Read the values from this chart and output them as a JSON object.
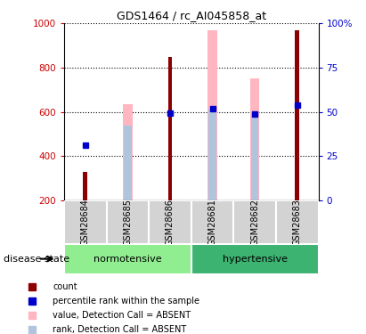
{
  "title": "GDS1464 / rc_AI045858_at",
  "samples": [
    "GSM28684",
    "GSM28685",
    "GSM28686",
    "GSM28681",
    "GSM28682",
    "GSM28683"
  ],
  "count_values": [
    330,
    null,
    850,
    null,
    null,
    970
  ],
  "percentile_values": [
    450,
    null,
    595,
    615,
    590,
    630
  ],
  "absent_value_values": [
    null,
    635,
    null,
    970,
    750,
    null
  ],
  "absent_rank_values": [
    null,
    540,
    null,
    615,
    585,
    null
  ],
  "ylim_left": [
    200,
    1000
  ],
  "ylim_right": [
    0,
    100
  ],
  "yticks_left": [
    200,
    400,
    600,
    800,
    1000
  ],
  "ytick_labels_left": [
    "200",
    "400",
    "600",
    "800",
    "1000"
  ],
  "yticks_right": [
    0,
    25,
    50,
    75,
    100
  ],
  "ytick_labels_right": [
    "0",
    "25",
    "50",
    "75",
    "100%"
  ],
  "color_count": "#8B0000",
  "color_percentile": "#0000CC",
  "color_absent_value": "#FFB6C1",
  "color_absent_rank": "#B0C4DE",
  "left_axis_color": "#CC0000",
  "right_axis_color": "#0000CC",
  "group_info": [
    {
      "name": "normotensive",
      "start": 0,
      "end": 2,
      "color": "#90EE90"
    },
    {
      "name": "hypertensive",
      "start": 3,
      "end": 5,
      "color": "#3CB371"
    }
  ],
  "legend_items": [
    {
      "label": "count",
      "color": "#8B0000"
    },
    {
      "label": "percentile rank within the sample",
      "color": "#0000CC"
    },
    {
      "label": "value, Detection Call = ABSENT",
      "color": "#FFB6C1"
    },
    {
      "label": "rank, Detection Call = ABSENT",
      "color": "#B0C4DE"
    }
  ],
  "group_label_text": "disease state"
}
